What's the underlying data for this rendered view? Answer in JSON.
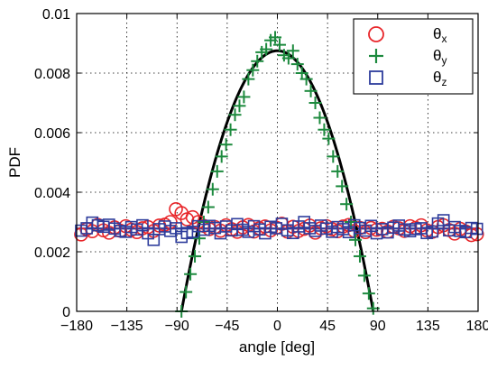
{
  "chart_data": {
    "type": "scatter",
    "title": "",
    "xlabel": "angle [deg]",
    "ylabel": "PDF",
    "xlim": [
      -180,
      180
    ],
    "ylim": [
      0,
      0.01
    ],
    "grid": true,
    "legend_position": "top-right",
    "x_ticks": [
      -180,
      -135,
      -90,
      -45,
      0,
      45,
      90,
      135,
      180
    ],
    "x_tick_labels": [
      "−180",
      "−135",
      "−90",
      "−45",
      "0",
      "45",
      "90",
      "135",
      "180"
    ],
    "y_ticks": [
      0,
      0.002,
      0.004,
      0.006,
      0.008,
      0.01
    ],
    "y_tick_labels": [
      "0",
      "0.002",
      "0.004",
      "0.006",
      "0.008",
      "0.01"
    ],
    "series": [
      {
        "name": "θx",
        "label_main": "θ",
        "label_sub": "x",
        "marker": "circle",
        "color": "#e8262a",
        "x": [
          -176,
          -171,
          -166,
          -161,
          -156,
          -151,
          -146,
          -141,
          -136,
          -131,
          -126,
          -121,
          -116,
          -111,
          -106,
          -101,
          -96,
          -91,
          -86,
          -81,
          -76,
          -71,
          -66,
          -61,
          -56,
          -51,
          -46,
          -41,
          -36,
          -31,
          -26,
          -21,
          -16,
          -11,
          -6,
          -1,
          4,
          9,
          14,
          19,
          24,
          29,
          34,
          39,
          44,
          49,
          54,
          59,
          64,
          69,
          74,
          79,
          84,
          89,
          94,
          99,
          104,
          109,
          114,
          119,
          124,
          129,
          134,
          139,
          144,
          149,
          154,
          159,
          164,
          169,
          174,
          179
        ],
        "y": [
          0.00258,
          0.00276,
          0.00269,
          0.0029,
          0.00272,
          0.00264,
          0.00282,
          0.00271,
          0.00286,
          0.00274,
          0.00266,
          0.00279,
          0.00283,
          0.0027,
          0.00288,
          0.00291,
          0.003,
          0.00343,
          0.0033,
          0.00309,
          0.00316,
          0.003,
          0.00287,
          0.00276,
          0.00283,
          0.00271,
          0.00289,
          0.00276,
          0.00267,
          0.00282,
          0.0029,
          0.00268,
          0.00279,
          0.00285,
          0.00272,
          0.00281,
          0.00294,
          0.00268,
          0.00284,
          0.0027,
          0.00277,
          0.00288,
          0.00264,
          0.00279,
          0.00286,
          0.00276,
          0.00269,
          0.00285,
          0.0029,
          0.0027,
          0.0028,
          0.00266,
          0.0028,
          0.00274,
          0.00277,
          0.00268,
          0.00284,
          0.00279,
          0.0027,
          0.00286,
          0.0028,
          0.00289,
          0.00272,
          0.00267,
          0.00283,
          0.00289,
          0.00273,
          0.00261,
          0.00277,
          0.00268,
          0.00256,
          0.00259
        ]
      },
      {
        "name": "θy",
        "label_main": "θ",
        "label_sub": "y",
        "marker": "plus",
        "color": "#1d8a3e",
        "x": [
          -86,
          -82,
          -78,
          -74,
          -70,
          -66,
          -62,
          -58,
          -54,
          -50,
          -46,
          -42,
          -38,
          -34,
          -30,
          -26,
          -22,
          -18,
          -14,
          -10,
          -6,
          -2,
          2,
          6,
          10,
          14,
          18,
          22,
          26,
          30,
          34,
          38,
          42,
          46,
          50,
          54,
          58,
          62,
          66,
          70,
          74,
          78,
          82,
          86
        ],
        "y": [
          0.0,
          0.00065,
          0.00125,
          0.00185,
          0.00245,
          0.003,
          0.0035,
          0.0041,
          0.0047,
          0.0052,
          0.0056,
          0.0061,
          0.0066,
          0.0069,
          0.0072,
          0.0078,
          0.0081,
          0.0084,
          0.0087,
          0.0088,
          0.0091,
          0.0092,
          0.00895,
          0.0086,
          0.0085,
          0.00875,
          0.0083,
          0.008,
          0.0078,
          0.0074,
          0.007,
          0.0065,
          0.0061,
          0.0058,
          0.0052,
          0.0047,
          0.0042,
          0.0036,
          0.003,
          0.0024,
          0.00185,
          0.0012,
          0.0006,
          0.0001
        ]
      },
      {
        "name": "θz",
        "label_main": "θ",
        "label_sub": "z",
        "marker": "square",
        "color": "#2e3d9c",
        "x": [
          -176,
          -171,
          -166,
          -161,
          -156,
          -151,
          -146,
          -141,
          -136,
          -131,
          -126,
          -121,
          -116,
          -111,
          -106,
          -101,
          -96,
          -91,
          -86,
          -81,
          -76,
          -71,
          -66,
          -61,
          -56,
          -51,
          -46,
          -41,
          -36,
          -31,
          -26,
          -21,
          -16,
          -11,
          -6,
          -1,
          4,
          9,
          14,
          19,
          24,
          29,
          34,
          39,
          44,
          49,
          54,
          59,
          64,
          69,
          74,
          79,
          84,
          89,
          94,
          99,
          104,
          109,
          114,
          119,
          124,
          129,
          134,
          139,
          144,
          149,
          154,
          159,
          164,
          169,
          174,
          179
        ],
        "y": [
          0.00271,
          0.00279,
          0.00298,
          0.00289,
          0.00284,
          0.00291,
          0.00278,
          0.0027,
          0.00267,
          0.00283,
          0.00275,
          0.00289,
          0.00262,
          0.0024,
          0.00276,
          0.00285,
          0.0027,
          0.00279,
          0.0025,
          0.00263,
          0.00267,
          0.00286,
          0.00274,
          0.00287,
          0.0028,
          0.00262,
          0.00285,
          0.00272,
          0.00293,
          0.00274,
          0.00267,
          0.00286,
          0.00275,
          0.00262,
          0.00284,
          0.00279,
          0.00294,
          0.00272,
          0.00263,
          0.00285,
          0.003,
          0.00279,
          0.0027,
          0.00288,
          0.00278,
          0.00267,
          0.00283,
          0.00276,
          0.00266,
          0.00289,
          0.0028,
          0.00271,
          0.00287,
          0.00262,
          0.00276,
          0.00265,
          0.00281,
          0.00288,
          0.00275,
          0.00269,
          0.00276,
          0.00279,
          0.00263,
          0.00268,
          0.00295,
          0.00306,
          0.00272,
          0.00283,
          0.0027,
          0.00266,
          0.0028,
          0.00277
        ]
      }
    ],
    "fit_lines": [
      {
        "shape": "parabola",
        "color": "#000000",
        "peak_x": 0,
        "peak_y": 0.00875,
        "zero_at": 86
      },
      {
        "shape": "constant",
        "color": "#2e3d9c",
        "y": 0.00278
      }
    ]
  }
}
